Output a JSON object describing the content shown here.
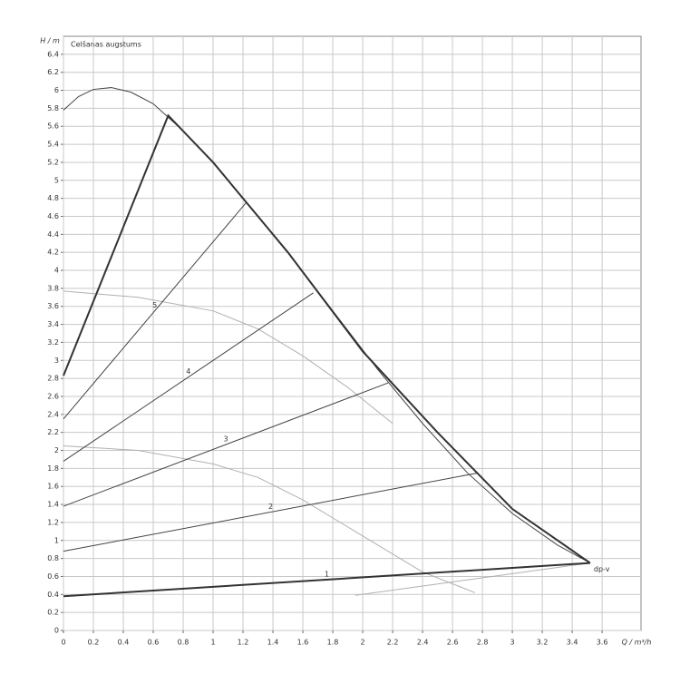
{
  "chart_data": {
    "type": "line",
    "title": "Celšanas augstums",
    "x_label": "Q / m³/h",
    "y_label": "H / m",
    "xlim": [
      0,
      3.86
    ],
    "ylim": [
      0,
      6.6
    ],
    "xticks": [
      0,
      0.2,
      0.4,
      0.6,
      0.8,
      1,
      1.2,
      1.4,
      1.6,
      1.8,
      2,
      2.2,
      2.4,
      2.6,
      2.8,
      3,
      3.2,
      3.4,
      3.6
    ],
    "yticks": [
      0,
      0.2,
      0.4,
      0.6,
      0.8,
      1,
      1.2,
      1.4,
      1.6,
      1.8,
      2,
      2.2,
      2.4,
      2.6,
      2.8,
      3,
      3.2,
      3.4,
      3.6,
      3.8,
      4,
      4.2,
      4.4,
      4.6,
      4.8,
      5,
      5.2,
      5.4,
      5.6,
      5.8,
      6,
      6.2,
      6.4
    ],
    "grid": true,
    "series": [
      {
        "color": "#444444",
        "width": 1,
        "x": [
          0,
          0.1,
          0.2,
          0.32,
          0.45,
          0.6,
          0.8,
          1,
          1.2,
          1.5,
          1.8,
          2.1,
          2.4,
          2.7,
          3,
          3.3,
          3.52
        ],
        "values": [
          5.78,
          5.93,
          6.01,
          6.03,
          5.98,
          5.85,
          5.55,
          5.2,
          4.8,
          4.2,
          3.55,
          2.9,
          2.3,
          1.75,
          1.3,
          0.95,
          0.75
        ]
      },
      {
        "color": "#b0b0b0",
        "width": 1,
        "x": [
          0,
          0.5,
          1,
          1.3,
          1.6,
          1.9,
          2.2
        ],
        "values": [
          3.77,
          3.7,
          3.55,
          3.35,
          3.05,
          2.7,
          2.3
        ]
      },
      {
        "color": "#b0b0b0",
        "width": 1,
        "x": [
          0,
          0.5,
          1,
          1.3,
          1.6,
          2,
          2.4,
          2.75
        ],
        "values": [
          2.05,
          2.0,
          1.85,
          1.7,
          1.45,
          1.05,
          0.65,
          0.42
        ]
      },
      {
        "color": "#b0b0b0",
        "width": 1,
        "x": [
          1.95,
          3.52
        ],
        "values": [
          0.39,
          0.75
        ]
      },
      {
        "name": "5",
        "color": "#444444",
        "width": 1,
        "x": [
          0,
          1.22
        ],
        "values": [
          2.35,
          4.75
        ]
      },
      {
        "name": "4",
        "color": "#444444",
        "width": 1,
        "x": [
          0,
          1.67
        ],
        "values": [
          1.88,
          3.75
        ]
      },
      {
        "name": "3",
        "color": "#444444",
        "width": 1,
        "x": [
          0,
          2.17
        ],
        "values": [
          1.38,
          2.75
        ]
      },
      {
        "name": "2",
        "color": "#444444",
        "width": 1,
        "x": [
          0,
          2.77
        ],
        "values": [
          0.88,
          1.75
        ]
      },
      {
        "name": "1",
        "color": "#333333",
        "width": 2,
        "x": [
          0,
          3.52
        ],
        "values": [
          0.38,
          0.75
        ]
      },
      {
        "name": "dp-v",
        "color": "#333333",
        "width": 2,
        "x": [
          0,
          0.7,
          1,
          1.5,
          2,
          2.5,
          3,
          3.52
        ],
        "values": [
          2.83,
          5.72,
          5.2,
          4.2,
          3.1,
          2.2,
          1.35,
          0.75
        ]
      }
    ]
  }
}
